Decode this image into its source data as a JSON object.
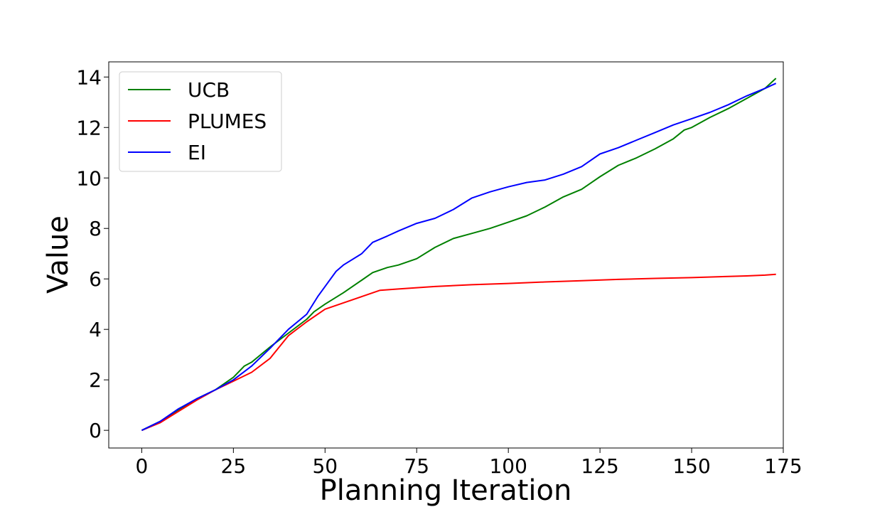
{
  "chart_data": {
    "type": "line",
    "title": "",
    "xlabel": "Planning Iteration",
    "ylabel": "Value",
    "xlim": [
      -9,
      175
    ],
    "ylim": [
      -0.7,
      14.6
    ],
    "xticks": [
      0,
      25,
      50,
      75,
      100,
      125,
      150,
      175
    ],
    "yticks": [
      0,
      2,
      4,
      6,
      8,
      10,
      12,
      14
    ],
    "grid": false,
    "legend_position": "top-left",
    "series": [
      {
        "name": "UCB",
        "color": "#008000",
        "points": [
          [
            0,
            0
          ],
          [
            5,
            0.35
          ],
          [
            10,
            0.8
          ],
          [
            15,
            1.25
          ],
          [
            20,
            1.6
          ],
          [
            25,
            2.1
          ],
          [
            28,
            2.55
          ],
          [
            30,
            2.7
          ],
          [
            35,
            3.3
          ],
          [
            40,
            3.85
          ],
          [
            45,
            4.4
          ],
          [
            47,
            4.7
          ],
          [
            50,
            5.0
          ],
          [
            55,
            5.45
          ],
          [
            60,
            5.95
          ],
          [
            63,
            6.25
          ],
          [
            67,
            6.45
          ],
          [
            70,
            6.55
          ],
          [
            75,
            6.8
          ],
          [
            80,
            7.25
          ],
          [
            85,
            7.6
          ],
          [
            90,
            7.8
          ],
          [
            95,
            8.0
          ],
          [
            100,
            8.25
          ],
          [
            105,
            8.5
          ],
          [
            110,
            8.85
          ],
          [
            115,
            9.25
          ],
          [
            120,
            9.55
          ],
          [
            125,
            10.05
          ],
          [
            130,
            10.5
          ],
          [
            135,
            10.8
          ],
          [
            140,
            11.15
          ],
          [
            145,
            11.55
          ],
          [
            148,
            11.9
          ],
          [
            150,
            12.0
          ],
          [
            155,
            12.4
          ],
          [
            160,
            12.75
          ],
          [
            165,
            13.15
          ],
          [
            170,
            13.55
          ],
          [
            173,
            13.95
          ]
        ]
      },
      {
        "name": "PLUMES",
        "color": "#ff0000",
        "points": [
          [
            0,
            0
          ],
          [
            5,
            0.3
          ],
          [
            10,
            0.75
          ],
          [
            15,
            1.2
          ],
          [
            20,
            1.6
          ],
          [
            25,
            1.95
          ],
          [
            30,
            2.3
          ],
          [
            35,
            2.85
          ],
          [
            40,
            3.75
          ],
          [
            45,
            4.3
          ],
          [
            50,
            4.8
          ],
          [
            55,
            5.05
          ],
          [
            60,
            5.3
          ],
          [
            65,
            5.55
          ],
          [
            70,
            5.6
          ],
          [
            75,
            5.65
          ],
          [
            80,
            5.7
          ],
          [
            90,
            5.77
          ],
          [
            100,
            5.82
          ],
          [
            110,
            5.88
          ],
          [
            120,
            5.93
          ],
          [
            130,
            5.98
          ],
          [
            140,
            6.02
          ],
          [
            150,
            6.05
          ],
          [
            160,
            6.1
          ],
          [
            165,
            6.12
          ],
          [
            170,
            6.15
          ],
          [
            173,
            6.18
          ]
        ]
      },
      {
        "name": "EI",
        "color": "#0000ff",
        "points": [
          [
            0,
            0
          ],
          [
            5,
            0.35
          ],
          [
            10,
            0.85
          ],
          [
            15,
            1.25
          ],
          [
            20,
            1.6
          ],
          [
            25,
            2.0
          ],
          [
            30,
            2.55
          ],
          [
            35,
            3.25
          ],
          [
            40,
            4.0
          ],
          [
            45,
            4.6
          ],
          [
            48,
            5.3
          ],
          [
            50,
            5.7
          ],
          [
            53,
            6.3
          ],
          [
            55,
            6.55
          ],
          [
            60,
            7.0
          ],
          [
            63,
            7.45
          ],
          [
            67,
            7.7
          ],
          [
            70,
            7.9
          ],
          [
            75,
            8.2
          ],
          [
            80,
            8.4
          ],
          [
            85,
            8.75
          ],
          [
            90,
            9.2
          ],
          [
            95,
            9.45
          ],
          [
            100,
            9.65
          ],
          [
            105,
            9.82
          ],
          [
            110,
            9.92
          ],
          [
            115,
            10.15
          ],
          [
            120,
            10.45
          ],
          [
            125,
            10.95
          ],
          [
            130,
            11.2
          ],
          [
            135,
            11.5
          ],
          [
            140,
            11.8
          ],
          [
            145,
            12.1
          ],
          [
            150,
            12.35
          ],
          [
            155,
            12.6
          ],
          [
            160,
            12.9
          ],
          [
            165,
            13.25
          ],
          [
            170,
            13.55
          ],
          [
            173,
            13.75
          ]
        ]
      }
    ]
  }
}
